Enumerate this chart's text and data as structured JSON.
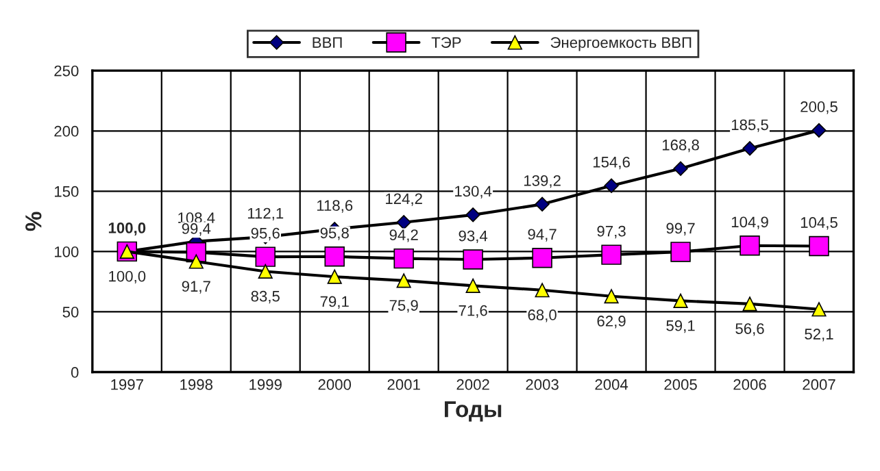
{
  "chart_data": {
    "type": "line",
    "xlabel": "Годы",
    "ylabel": "%",
    "categories": [
      "1997",
      "1998",
      "1999",
      "2000",
      "2001",
      "2002",
      "2003",
      "2004",
      "2005",
      "2006",
      "2007"
    ],
    "series": [
      {
        "name": "ВВП",
        "color": "#000080",
        "marker": "diamond",
        "values": [
          100.0,
          108.4,
          112.1,
          118.6,
          124.2,
          130.4,
          139.2,
          154.6,
          168.8,
          185.5,
          200.5
        ],
        "value_labels": [
          "100,0",
          "108,4",
          "112,1",
          "118,6",
          "124,2",
          "130,4",
          "139,2",
          "154,6",
          "168,8",
          "185,5",
          "200,5"
        ]
      },
      {
        "name": "ТЭР",
        "color": "#ff00ff",
        "marker": "square",
        "values": [
          100.0,
          99.4,
          95.6,
          95.8,
          94.2,
          93.4,
          94.7,
          97.3,
          99.7,
          104.9,
          104.5
        ],
        "value_labels": [
          null,
          "99,4",
          "95,6",
          "95,8",
          "94,2",
          "93,4",
          "94,7",
          "97,3",
          "99,7",
          "104,9",
          "104,5"
        ]
      },
      {
        "name": "Энергоемкость ВВП",
        "color": "#ffff00",
        "marker": "triangle",
        "values": [
          100.0,
          91.7,
          83.5,
          79.1,
          75.9,
          71.6,
          68.0,
          62.9,
          59.1,
          56.6,
          52.1
        ],
        "value_labels": [
          "100,0",
          "91,7",
          "83,5",
          "79,1",
          "75,9",
          "71,6",
          "68,0",
          "62,9",
          "59,1",
          "56,6",
          "52,1"
        ]
      }
    ],
    "ylim": [
      0,
      250
    ],
    "yticks": [
      0,
      50,
      100,
      150,
      200,
      250
    ],
    "grid": true,
    "legend": "top",
    "line_style": "solid"
  }
}
